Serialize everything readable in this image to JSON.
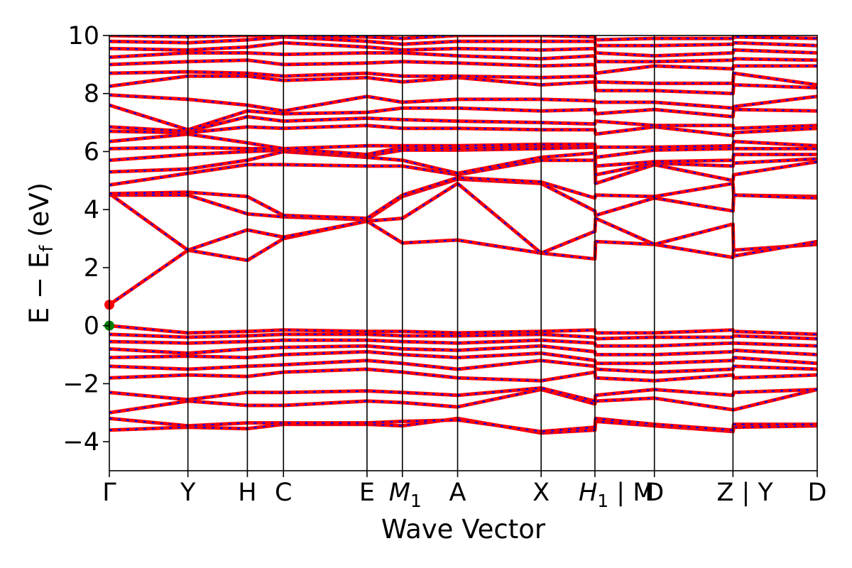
{
  "chart_data": {
    "type": "line",
    "title": "",
    "xlabel": "Wave Vector",
    "ylabel": "E − E",
    "ylabel_sub": "f",
    "ylabel_unit": " (eV)",
    "ylim": [
      -5,
      10
    ],
    "yticks": [
      -4,
      -2,
      0,
      2,
      4,
      6,
      8,
      10
    ],
    "ytick_labels": [
      "−4",
      "−2",
      "0",
      "2",
      "4",
      "6",
      "8",
      "10"
    ],
    "xlim": [
      0,
      1
    ],
    "kpoints": [
      {
        "pos": 0.0,
        "label": "Γ"
      },
      {
        "pos": 0.111,
        "label": "Y"
      },
      {
        "pos": 0.195,
        "label": "H"
      },
      {
        "pos": 0.246,
        "label": "C"
      },
      {
        "pos": 0.364,
        "label": "E"
      },
      {
        "pos": 0.414,
        "label": "M",
        "sub": "1"
      },
      {
        "pos": 0.492,
        "label": "A"
      },
      {
        "pos": 0.61,
        "label": "X"
      },
      {
        "pos": 0.686,
        "label": "H",
        "sub": "1",
        "suffix": " | M"
      },
      {
        "pos": 0.77,
        "label": "D"
      },
      {
        "pos": 0.881,
        "label": "Z",
        "suffix": " | Y"
      },
      {
        "pos": 1.0,
        "label": "D"
      }
    ],
    "vlines": [
      0.111,
      0.195,
      0.246,
      0.364,
      0.414,
      0.492,
      0.61,
      0.686,
      0.77,
      0.881
    ],
    "grid": false,
    "colors": {
      "spin_up": "#ff0000",
      "spin_down": "#0000ff",
      "vbm": "#008000",
      "cbm": "#ff0000"
    },
    "markers": [
      {
        "name": "CBM",
        "x": 0.0,
        "y": 0.72,
        "color": "#ff0000"
      },
      {
        "name": "VBM",
        "x": 0.0,
        "y": 0.0,
        "color": "#008000"
      }
    ],
    "bands": [
      {
        "x": [
          0,
          0.111,
          0.195,
          0.246,
          0.364,
          0.414,
          0.492,
          0.61,
          0.686,
          0.687,
          0.77,
          0.881,
          0.882,
          1.0
        ],
        "y": [
          -3.6,
          -3.5,
          -3.55,
          -3.4,
          -3.4,
          -3.45,
          -3.2,
          -3.7,
          -3.6,
          -3.3,
          -3.45,
          -3.65,
          -3.5,
          -3.45
        ]
      },
      {
        "x": [
          0,
          0.111,
          0.195,
          0.246,
          0.364,
          0.414,
          0.492,
          0.61,
          0.686,
          0.687,
          0.77,
          0.881,
          0.882,
          1.0
        ],
        "y": [
          -3.2,
          -3.45,
          -3.35,
          -3.35,
          -3.35,
          -3.3,
          -3.25,
          -3.65,
          -3.5,
          -3.2,
          -3.4,
          -3.6,
          -3.4,
          -3.4
        ]
      },
      {
        "x": [
          0,
          0.111,
          0.195,
          0.246,
          0.364,
          0.414,
          0.492,
          0.61,
          0.686,
          0.687,
          0.77,
          0.881,
          0.882,
          1.0
        ],
        "y": [
          -3.0,
          -2.6,
          -2.75,
          -2.75,
          -2.6,
          -2.65,
          -2.8,
          -2.2,
          -2.7,
          -2.6,
          -2.5,
          -2.9,
          -2.9,
          -2.2
        ]
      },
      {
        "x": [
          0,
          0.111,
          0.195,
          0.246,
          0.364,
          0.414,
          0.492,
          0.61,
          0.686,
          0.687,
          0.77,
          0.881,
          0.882,
          1.0
        ],
        "y": [
          -2.3,
          -2.55,
          -2.3,
          -2.3,
          -2.25,
          -2.3,
          -2.4,
          -2.15,
          -2.6,
          -2.4,
          -2.2,
          -2.4,
          -2.3,
          -2.2
        ]
      },
      {
        "x": [
          0,
          0.111,
          0.195,
          0.246,
          0.364,
          0.414,
          0.492,
          0.61,
          0.686,
          0.687,
          0.77,
          0.881,
          0.882,
          1.0
        ],
        "y": [
          -1.8,
          -1.7,
          -1.75,
          -1.6,
          -1.5,
          -1.6,
          -1.8,
          -1.9,
          -1.6,
          -1.8,
          -1.9,
          -1.7,
          -1.8,
          -1.7
        ]
      },
      {
        "x": [
          0,
          0.111,
          0.195,
          0.246,
          0.364,
          0.414,
          0.492,
          0.61,
          0.686,
          0.687,
          0.77,
          0.881,
          0.882,
          1.0
        ],
        "y": [
          -1.4,
          -1.5,
          -1.4,
          -1.35,
          -1.2,
          -1.3,
          -1.5,
          -1.2,
          -1.4,
          -1.5,
          -1.6,
          -1.5,
          -1.4,
          -1.5
        ]
      },
      {
        "x": [
          0,
          0.111,
          0.195,
          0.246,
          0.364,
          0.414,
          0.492,
          0.61,
          0.686,
          0.687,
          0.77,
          0.881,
          0.882,
          1.0
        ],
        "y": [
          -1.1,
          -1.05,
          -1.1,
          -1.0,
          -0.9,
          -1.0,
          -1.1,
          -0.95,
          -1.2,
          -1.3,
          -1.3,
          -1.2,
          -1.1,
          -1.3
        ]
      },
      {
        "x": [
          0,
          0.111,
          0.195,
          0.246,
          0.364,
          0.414,
          0.492,
          0.61,
          0.686,
          0.687,
          0.77,
          0.881,
          0.882,
          1.0
        ],
        "y": [
          -0.8,
          -0.95,
          -0.8,
          -0.75,
          -0.7,
          -0.8,
          -0.85,
          -0.7,
          -0.9,
          -1.0,
          -1.0,
          -0.9,
          -0.85,
          -1.0
        ]
      },
      {
        "x": [
          0,
          0.111,
          0.195,
          0.246,
          0.364,
          0.414,
          0.492,
          0.61,
          0.686,
          0.687,
          0.77,
          0.881,
          0.882,
          1.0
        ],
        "y": [
          -0.55,
          -0.6,
          -0.55,
          -0.5,
          -0.5,
          -0.55,
          -0.6,
          -0.5,
          -0.6,
          -0.7,
          -0.7,
          -0.6,
          -0.6,
          -0.7
        ]
      },
      {
        "x": [
          0,
          0.111,
          0.195,
          0.246,
          0.364,
          0.414,
          0.492,
          0.61,
          0.686,
          0.687,
          0.77,
          0.881,
          0.882,
          1.0
        ],
        "y": [
          -0.3,
          -0.4,
          -0.35,
          -0.3,
          -0.3,
          -0.35,
          -0.35,
          -0.3,
          -0.4,
          -0.45,
          -0.4,
          -0.4,
          -0.35,
          -0.45
        ]
      },
      {
        "x": [
          0,
          0.111,
          0.195,
          0.246,
          0.364,
          0.414,
          0.492,
          0.61,
          0.686,
          0.687,
          0.77,
          0.881,
          0.882,
          1.0
        ],
        "y": [
          0.0,
          -0.25,
          -0.2,
          -0.15,
          -0.2,
          -0.2,
          -0.25,
          -0.2,
          -0.15,
          -0.25,
          -0.25,
          -0.15,
          -0.2,
          -0.3
        ]
      },
      {
        "x": [
          0,
          0.111,
          0.195,
          0.246,
          0.364,
          0.414,
          0.492,
          0.61,
          0.686,
          0.687,
          0.77,
          0.881,
          0.882,
          1.0
        ],
        "y": [
          0.72,
          2.6,
          2.25,
          3.0,
          3.6,
          2.85,
          2.95,
          2.5,
          2.3,
          2.9,
          2.8,
          2.35,
          2.6,
          2.8
        ]
      },
      {
        "x": [
          0,
          0.111,
          0.195,
          0.246,
          0.364,
          0.414,
          0.492,
          0.61,
          0.686,
          0.687,
          0.77,
          0.881,
          0.882,
          1.0
        ],
        "y": [
          4.55,
          2.6,
          3.3,
          3.05,
          3.6,
          3.7,
          4.9,
          2.5,
          3.25,
          3.7,
          2.8,
          3.5,
          2.4,
          2.9
        ]
      },
      {
        "x": [
          0,
          0.111,
          0.195,
          0.246,
          0.364,
          0.414,
          0.492,
          0.61,
          0.686,
          0.687,
          0.77,
          0.881,
          0.882,
          1.0
        ],
        "y": [
          4.5,
          4.5,
          3.85,
          3.75,
          3.65,
          4.45,
          5.05,
          4.9,
          3.95,
          3.8,
          4.4,
          3.95,
          4.5,
          4.45
        ]
      },
      {
        "x": [
          0,
          0.111,
          0.195,
          0.246,
          0.364,
          0.414,
          0.492,
          0.61,
          0.686,
          0.687,
          0.77,
          0.881,
          0.882,
          1.0
        ],
        "y": [
          4.55,
          4.6,
          4.45,
          3.8,
          3.7,
          4.5,
          5.1,
          4.95,
          4.4,
          4.5,
          4.45,
          4.9,
          4.5,
          4.4
        ]
      },
      {
        "x": [
          0,
          0.111,
          0.195,
          0.246,
          0.364,
          0.414,
          0.492,
          0.61,
          0.686,
          0.687,
          0.77,
          0.881,
          0.882,
          1.0
        ],
        "y": [
          4.85,
          5.25,
          5.55,
          5.55,
          5.5,
          5.5,
          5.2,
          5.7,
          5.7,
          4.9,
          5.55,
          5.0,
          5.2,
          5.65
        ]
      },
      {
        "x": [
          0,
          0.111,
          0.195,
          0.246,
          0.364,
          0.414,
          0.492,
          0.61,
          0.686,
          0.687,
          0.77,
          0.881,
          0.882,
          1.0
        ],
        "y": [
          5.3,
          5.4,
          5.7,
          6.0,
          5.8,
          5.7,
          5.25,
          5.8,
          5.95,
          5.2,
          5.6,
          5.5,
          5.6,
          5.75
        ]
      },
      {
        "x": [
          0,
          0.111,
          0.195,
          0.246,
          0.364,
          0.414,
          0.492,
          0.61,
          0.686,
          0.687,
          0.77,
          0.881,
          0.882,
          1.0
        ],
        "y": [
          5.7,
          5.9,
          6.0,
          6.05,
          5.85,
          6.05,
          6.05,
          6.1,
          6.15,
          5.5,
          5.65,
          5.7,
          5.9,
          5.9
        ]
      },
      {
        "x": [
          0,
          0.111,
          0.195,
          0.246,
          0.364,
          0.414,
          0.492,
          0.61,
          0.686,
          0.687,
          0.77,
          0.881,
          0.882,
          1.0
        ],
        "y": [
          6.1,
          6.15,
          6.1,
          6.1,
          5.9,
          6.15,
          6.1,
          6.2,
          6.2,
          5.8,
          6.05,
          6.1,
          6.1,
          6.1
        ]
      },
      {
        "x": [
          0,
          0.111,
          0.195,
          0.246,
          0.364,
          0.414,
          0.492,
          0.61,
          0.686,
          0.687,
          0.77,
          0.881,
          0.882,
          1.0
        ],
        "y": [
          6.35,
          6.6,
          6.3,
          6.1,
          6.2,
          6.2,
          6.2,
          6.25,
          6.25,
          6.15,
          6.15,
          6.2,
          6.35,
          6.2
        ]
      },
      {
        "x": [
          0,
          0.111,
          0.195,
          0.246,
          0.364,
          0.414,
          0.492,
          0.61,
          0.686,
          0.687,
          0.77,
          0.881,
          0.882,
          1.0
        ],
        "y": [
          6.7,
          6.65,
          6.85,
          6.8,
          6.9,
          6.8,
          6.8,
          6.75,
          6.75,
          6.6,
          6.85,
          6.55,
          6.65,
          6.8
        ]
      },
      {
        "x": [
          0,
          0.111,
          0.195,
          0.246,
          0.364,
          0.414,
          0.492,
          0.61,
          0.686,
          0.687,
          0.77,
          0.881,
          0.882,
          1.0
        ],
        "y": [
          6.85,
          6.7,
          7.2,
          7.05,
          7.15,
          7.1,
          7.05,
          7.0,
          6.95,
          7.05,
          6.9,
          6.9,
          6.8,
          6.9
        ]
      },
      {
        "x": [
          0,
          0.111,
          0.195,
          0.246,
          0.364,
          0.414,
          0.492,
          0.61,
          0.686,
          0.687,
          0.77,
          0.881,
          0.882,
          1.0
        ],
        "y": [
          7.6,
          6.75,
          7.4,
          7.3,
          7.35,
          7.5,
          7.5,
          7.4,
          7.45,
          7.3,
          7.45,
          7.2,
          7.45,
          7.4
        ]
      },
      {
        "x": [
          0,
          0.111,
          0.195,
          0.246,
          0.364,
          0.414,
          0.492,
          0.61,
          0.686,
          0.687,
          0.77,
          0.881,
          0.882,
          1.0
        ],
        "y": [
          7.95,
          7.8,
          7.6,
          7.4,
          7.9,
          7.7,
          7.8,
          7.8,
          7.75,
          7.7,
          7.7,
          7.5,
          7.55,
          7.9
        ]
      },
      {
        "x": [
          0,
          0.111,
          0.195,
          0.246,
          0.364,
          0.414,
          0.492,
          0.61,
          0.686,
          0.687,
          0.77,
          0.881,
          0.882,
          1.0
        ],
        "y": [
          8.25,
          8.6,
          8.6,
          8.45,
          8.55,
          8.4,
          8.55,
          8.3,
          8.4,
          8.1,
          8.1,
          8.0,
          8.3,
          8.2
        ]
      },
      {
        "x": [
          0,
          0.111,
          0.195,
          0.246,
          0.364,
          0.414,
          0.492,
          0.61,
          0.686,
          0.687,
          0.77,
          0.881,
          0.882,
          1.0
        ],
        "y": [
          8.7,
          8.75,
          8.7,
          8.6,
          8.7,
          8.6,
          8.6,
          8.55,
          8.6,
          8.4,
          8.35,
          8.35,
          8.7,
          8.3
        ]
      },
      {
        "x": [
          0,
          0.111,
          0.195,
          0.246,
          0.364,
          0.414,
          0.492,
          0.61,
          0.686,
          0.687,
          0.77,
          0.881,
          0.882,
          1.0
        ],
        "y": [
          9.0,
          9.1,
          9.15,
          9.0,
          9.05,
          9.1,
          9.05,
          8.95,
          9.0,
          8.7,
          8.95,
          8.85,
          8.95,
          8.95
        ]
      },
      {
        "x": [
          0,
          0.111,
          0.195,
          0.246,
          0.364,
          0.414,
          0.492,
          0.61,
          0.686,
          0.687,
          0.77,
          0.881,
          0.882,
          1.0
        ],
        "y": [
          9.25,
          9.4,
          9.4,
          9.35,
          9.4,
          9.4,
          9.3,
          9.2,
          9.3,
          9.1,
          9.1,
          9.15,
          9.2,
          9.15
        ]
      },
      {
        "x": [
          0,
          0.111,
          0.195,
          0.246,
          0.364,
          0.414,
          0.492,
          0.61,
          0.686,
          0.687,
          0.77,
          0.881,
          0.882,
          1.0
        ],
        "y": [
          9.55,
          9.5,
          9.6,
          9.75,
          9.6,
          9.5,
          9.55,
          9.5,
          9.55,
          9.4,
          9.3,
          9.4,
          9.5,
          9.4
        ]
      },
      {
        "x": [
          0,
          0.111,
          0.195,
          0.246,
          0.364,
          0.414,
          0.492,
          0.61,
          0.686,
          0.687,
          0.77,
          0.881,
          0.882,
          1.0
        ],
        "y": [
          9.8,
          9.75,
          9.85,
          9.95,
          9.8,
          9.7,
          9.8,
          9.8,
          9.8,
          9.65,
          9.65,
          9.7,
          9.75,
          9.65
        ]
      },
      {
        "x": [
          0,
          0.111,
          0.195,
          0.246,
          0.364,
          0.414,
          0.492,
          0.61,
          0.686,
          0.687,
          0.77,
          0.881,
          0.882,
          1.0
        ],
        "y": [
          10.0,
          9.95,
          10.0,
          10.0,
          9.95,
          9.9,
          10.0,
          10.0,
          9.95,
          9.85,
          9.9,
          9.9,
          9.95,
          9.9
        ]
      }
    ]
  }
}
